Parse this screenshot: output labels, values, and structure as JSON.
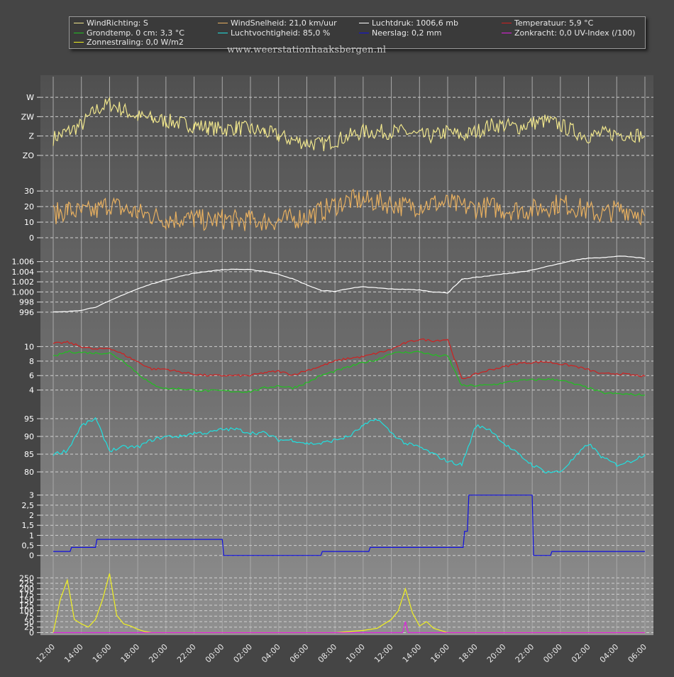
{
  "legend": [
    {
      "label": "WindRichting: S",
      "color": "#f0e68c"
    },
    {
      "label": "WindSnelheid: 21,0 km/uur",
      "color": "#e8b060"
    },
    {
      "label": "Luchtdruk: 1006,6 mb",
      "color": "#ffffff"
    },
    {
      "label": "Temperatuur: 5,9 °C",
      "color": "#d02020"
    },
    {
      "label": "Grondtemp. 0 cm: 3,3 °C",
      "color": "#20c020"
    },
    {
      "label": "Luchtvochtigheid: 85,0 %",
      "color": "#20e0e0"
    },
    {
      "label": "Neerslag: 0,2 mm",
      "color": "#1010e0"
    },
    {
      "label": "Zonkracht: 0,0 UV-Index (/100)",
      "color": "#e020e0"
    },
    {
      "label": "Zonnestraling: 0,0 W/m2",
      "color": "#f0f020"
    }
  ],
  "watermark": "www.weerstationhaaksbergen.nl",
  "colors": {
    "background": "#454545",
    "plot_background": "#808080",
    "grid": "#d8d8d8",
    "wind_direction": "#f0e68c",
    "wind_speed": "#e8b060",
    "pressure": "#ffffff",
    "temperature": "#d02020",
    "ground_temp": "#20c020",
    "humidity": "#20e0e0",
    "precipitation": "#1010e0",
    "uv": "#e020e0",
    "solar": "#f0f020"
  },
  "chart_data": [
    {
      "type": "line",
      "panel": "wind_direction",
      "ytick_labels": [
        "W",
        "ZW",
        "Z",
        "ZO"
      ],
      "ytick_values": [
        270,
        225,
        180,
        135
      ],
      "ylim": [
        130,
        285
      ],
      "grid": true,
      "series": [
        {
          "name": "WindRichting",
          "x": [
            0,
            1,
            2,
            3,
            4,
            5,
            6,
            7,
            8,
            9,
            10,
            11,
            12,
            13,
            14,
            15,
            16,
            17,
            18,
            19,
            20,
            21,
            22,
            23,
            24,
            25,
            26,
            27,
            28,
            29,
            30,
            31,
            32,
            33,
            34,
            35,
            36,
            37,
            38,
            39,
            40,
            41,
            42
          ],
          "y": [
            175,
            190,
            205,
            240,
            255,
            240,
            225,
            220,
            215,
            210,
            205,
            200,
            195,
            200,
            195,
            190,
            180,
            170,
            165,
            160,
            170,
            180,
            190,
            190,
            190,
            190,
            180,
            180,
            190,
            180,
            190,
            205,
            205,
            200,
            210,
            215,
            205,
            190,
            180,
            185,
            185,
            185,
            180
          ]
        }
      ]
    },
    {
      "type": "line",
      "panel": "wind_speed",
      "yticks": [
        0,
        10,
        20,
        30
      ],
      "ylim": [
        0,
        36
      ],
      "grid": true,
      "series": [
        {
          "name": "WindSnelheid",
          "x": [
            0,
            1,
            2,
            3,
            4,
            5,
            6,
            7,
            8,
            9,
            10,
            11,
            12,
            13,
            14,
            15,
            16,
            17,
            18,
            19,
            20,
            21,
            22,
            23,
            24,
            25,
            26,
            27,
            28,
            29,
            30,
            31,
            32,
            33,
            34,
            35,
            36,
            37,
            38,
            39,
            40,
            41,
            42
          ],
          "y": [
            15,
            18,
            16,
            17,
            22,
            18,
            16,
            14,
            12,
            12,
            12,
            11,
            12,
            11,
            11,
            11,
            11,
            12,
            14,
            17,
            21,
            24,
            24,
            23,
            22,
            20,
            21,
            22,
            22,
            20,
            19,
            20,
            18,
            18,
            18,
            20,
            22,
            20,
            17,
            15,
            18,
            18,
            14
          ]
        }
      ]
    },
    {
      "type": "line",
      "panel": "pressure",
      "yticks": [
        996,
        998,
        1000,
        1002,
        1004,
        1006
      ],
      "ytick_labels": [
        "996",
        "998",
        "1.000",
        "1.002",
        "1.004",
        "1.006"
      ],
      "ylim": [
        995,
        1007.5
      ],
      "grid": true,
      "series": [
        {
          "name": "Luchtdruk",
          "x": [
            0,
            1,
            2,
            3,
            4,
            5,
            6,
            7,
            8,
            9,
            10,
            11,
            12,
            13,
            14,
            15,
            16,
            17,
            18,
            19,
            20,
            21,
            22,
            23,
            24,
            25,
            26,
            27,
            28,
            29,
            30,
            31,
            32,
            33,
            34,
            35,
            36,
            37,
            38,
            39,
            40,
            41,
            42
          ],
          "y": [
            996.0,
            996.1,
            996.4,
            997.0,
            998.2,
            999.5,
            1000.6,
            1001.6,
            1002.4,
            1003.1,
            1003.7,
            1004.1,
            1004.4,
            1004.5,
            1004.4,
            1004.1,
            1003.5,
            1002.6,
            1001.4,
            1000.3,
            1000.1,
            1000.7,
            1001.0,
            1000.8,
            1000.6,
            1000.5,
            1000.4,
            1000.0,
            999.8,
            1002.5,
            1002.9,
            1003.2,
            1003.6,
            1003.9,
            1004.3,
            1005.0,
            1005.6,
            1006.3,
            1006.7,
            1006.8,
            1007.1,
            1007.0,
            1006.6
          ]
        }
      ]
    },
    {
      "type": "line",
      "panel": "temperature",
      "yticks": [
        4,
        6,
        8,
        10
      ],
      "ylim": [
        2.5,
        11.8
      ],
      "grid": true,
      "series": [
        {
          "name": "Temperatuur",
          "x": [
            0,
            1,
            2,
            3,
            4,
            5,
            6,
            7,
            8,
            9,
            10,
            11,
            12,
            13,
            14,
            15,
            16,
            17,
            18,
            19,
            20,
            21,
            22,
            23,
            24,
            25,
            26,
            27,
            28,
            29,
            30,
            31,
            32,
            33,
            34,
            35,
            36,
            37,
            38,
            39,
            40,
            41,
            42
          ],
          "y": [
            10.4,
            10.6,
            10.0,
            9.6,
            9.8,
            8.9,
            7.9,
            6.9,
            6.9,
            6.5,
            6.2,
            6.0,
            6.0,
            6.0,
            6.0,
            6.4,
            6.6,
            6.1,
            6.7,
            7.3,
            8.0,
            8.4,
            8.6,
            9.1,
            9.6,
            10.5,
            11.0,
            10.8,
            11.0,
            5.5,
            6.2,
            6.8,
            7.2,
            7.7,
            7.8,
            7.9,
            7.6,
            7.3,
            6.8,
            6.2,
            6.3,
            6.1,
            5.9
          ]
        },
        {
          "name": "Grondtemp. 0 cm",
          "x": [
            0,
            1,
            2,
            3,
            4,
            5,
            6,
            7,
            8,
            9,
            10,
            11,
            12,
            13,
            14,
            15,
            16,
            17,
            18,
            19,
            20,
            21,
            22,
            23,
            24,
            25,
            26,
            27,
            28,
            29,
            30,
            31,
            32,
            33,
            34,
            35,
            36,
            37,
            38,
            39,
            40,
            41,
            42
          ],
          "y": [
            8.6,
            9.3,
            9.2,
            9.1,
            9.1,
            8.0,
            6.3,
            4.8,
            4.2,
            4.2,
            4.0,
            3.9,
            3.9,
            3.8,
            3.8,
            4.3,
            4.6,
            4.3,
            5.0,
            6.0,
            6.6,
            7.2,
            7.8,
            8.2,
            9.1,
            9.2,
            9.3,
            8.8,
            8.7,
            4.6,
            4.6,
            4.7,
            5.0,
            5.3,
            5.4,
            5.5,
            5.4,
            4.8,
            4.3,
            3.6,
            3.5,
            3.4,
            3.3
          ]
        }
      ]
    },
    {
      "type": "line",
      "panel": "humidity",
      "yticks": [
        80,
        85,
        90,
        95
      ],
      "ylim": [
        78,
        97
      ],
      "grid": true,
      "series": [
        {
          "name": "Luchtvochtigheid",
          "x": [
            0,
            1,
            2,
            3,
            4,
            5,
            6,
            7,
            8,
            9,
            10,
            11,
            12,
            13,
            14,
            15,
            16,
            17,
            18,
            19,
            20,
            21,
            22,
            23,
            24,
            25,
            26,
            27,
            28,
            29,
            30,
            31,
            32,
            33,
            34,
            35,
            36,
            37,
            38,
            39,
            40,
            41,
            42
          ],
          "y": [
            85,
            86,
            93,
            95,
            86,
            87,
            87,
            89,
            90,
            90,
            91,
            91,
            92,
            92,
            91,
            91,
            89,
            89,
            88,
            88,
            89,
            90,
            93,
            95,
            91,
            88,
            87,
            85,
            83,
            82,
            93,
            92,
            88,
            85,
            82,
            80,
            80,
            84,
            88,
            84,
            82,
            83,
            85
          ]
        }
      ]
    },
    {
      "type": "line",
      "panel": "precipitation",
      "yticks": [
        0,
        0.5,
        1,
        1.5,
        2,
        2.5,
        3
      ],
      "ytick_labels": [
        "0",
        "0,5",
        "1",
        "1,5",
        "2",
        "2,5",
        "3"
      ],
      "ylim": [
        -0.15,
        3.2
      ],
      "grid": true,
      "series": [
        {
          "name": "Neerslag",
          "x": [
            0,
            1.2,
            1.3,
            3.0,
            3.1,
            12.0,
            12.1,
            19.0,
            19.1,
            22.4,
            22.5,
            29.1,
            29.2,
            29.4,
            29.5,
            34.0,
            34.1,
            35.3,
            35.4,
            42
          ],
          "y": [
            0.2,
            0.2,
            0.4,
            0.4,
            0.8,
            0.8,
            0.0,
            0.0,
            0.2,
            0.2,
            0.4,
            0.4,
            1.2,
            1.2,
            3.0,
            3.0,
            0.0,
            0.0,
            0.2,
            0.2
          ]
        }
      ]
    },
    {
      "type": "line",
      "panel": "solar",
      "yticks": [
        0,
        25,
        50,
        75,
        100,
        125,
        150,
        175,
        200,
        225,
        250
      ],
      "ylim": [
        -5,
        280
      ],
      "grid": true,
      "series": [
        {
          "name": "Zonnestraling",
          "x": [
            0,
            0.5,
            1,
            1.5,
            2,
            2.5,
            3,
            3.5,
            4,
            4.5,
            5,
            5.5,
            6,
            6.5,
            7,
            8,
            20,
            21,
            22,
            23,
            24,
            24.5,
            25,
            25.5,
            26,
            26.5,
            27,
            27.5,
            28,
            29,
            42
          ],
          "y": [
            0,
            150,
            240,
            60,
            40,
            25,
            60,
            150,
            270,
            80,
            40,
            30,
            15,
            5,
            0,
            0,
            0,
            5,
            10,
            20,
            60,
            100,
            200,
            90,
            30,
            50,
            20,
            10,
            0,
            0,
            0
          ]
        },
        {
          "name": "Zonkracht",
          "x": [
            0,
            6,
            6.5,
            7,
            24,
            24.8,
            25,
            25.2,
            26,
            42
          ],
          "y": [
            0,
            0,
            0,
            0,
            0,
            0,
            50,
            0,
            0,
            0
          ]
        }
      ]
    }
  ],
  "x_axis": {
    "tick_labels": [
      "12:00",
      "14:00",
      "16:00",
      "18:00",
      "20:00",
      "22:00",
      "00:00",
      "02:00",
      "04:00",
      "06:00",
      "08:00",
      "10:00",
      "12:00",
      "14:00",
      "16:00",
      "18:00",
      "20:00",
      "22:00",
      "00:00",
      "02:00",
      "04:00",
      "06:00"
    ],
    "tick_hours": [
      0,
      2,
      4,
      6,
      8,
      10,
      12,
      14,
      16,
      18,
      20,
      22,
      24,
      26,
      28,
      30,
      32,
      34,
      36,
      38,
      40,
      42
    ]
  }
}
